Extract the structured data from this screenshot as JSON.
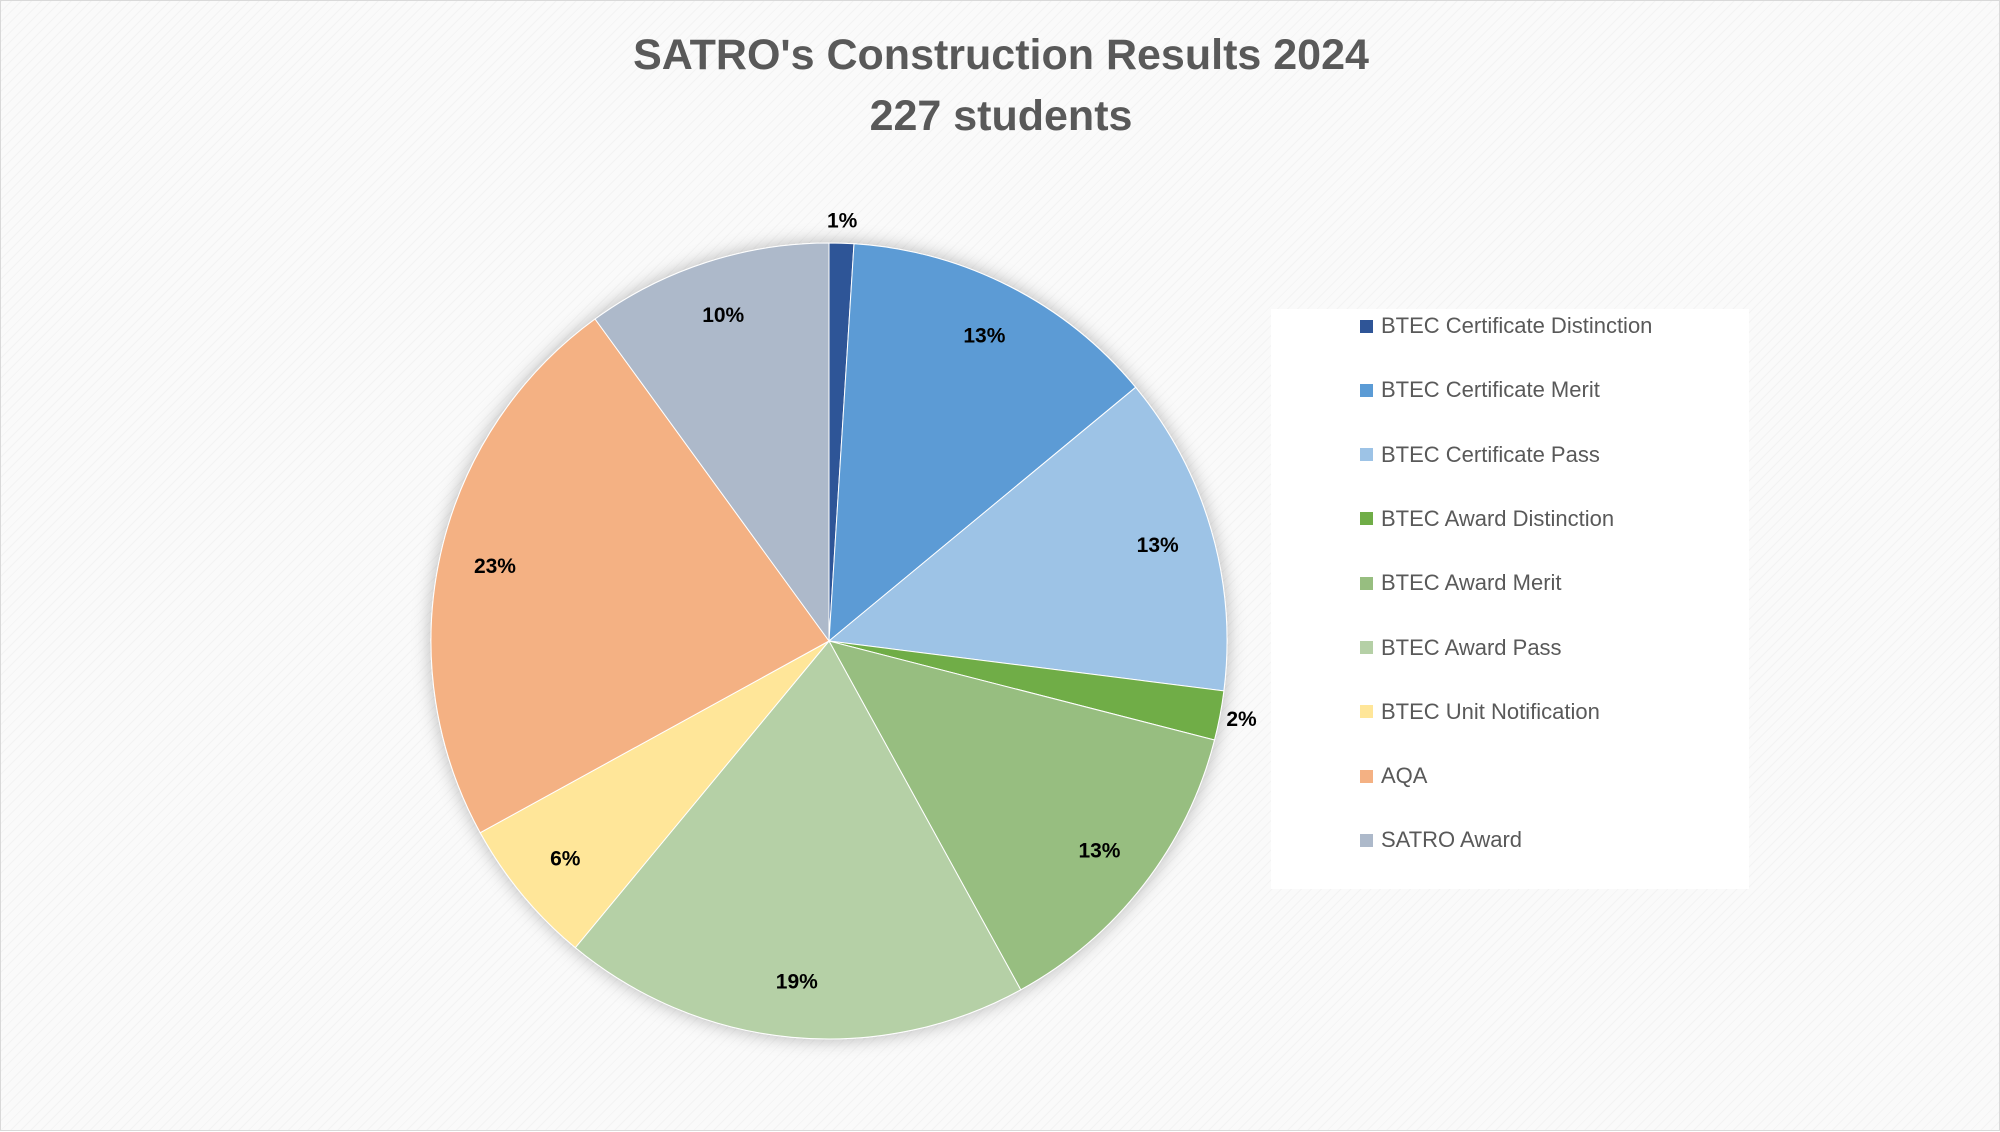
{
  "chart_data": {
    "type": "pie",
    "title": "SATRO's Construction Results 2024",
    "subtitle": "227  students",
    "legend_position": "right",
    "slices": [
      {
        "label": "BTEC Certificate Distinction",
        "value": 1,
        "value_label": "1%",
        "color": "#2f5597"
      },
      {
        "label": "BTEC Certificate Merit",
        "value": 13,
        "value_label": "13%",
        "color": "#5b9bd5"
      },
      {
        "label": "BTEC Certificate Pass",
        "value": 13,
        "value_label": "13%",
        "color": "#9dc3e6"
      },
      {
        "label": "BTEC Award Distinction",
        "value": 2,
        "value_label": "2%",
        "color": "#70ad47"
      },
      {
        "label": "BTEC Award Merit",
        "value": 13,
        "value_label": "13%",
        "color": "#97be80"
      },
      {
        "label": "BTEC Award Pass",
        "value": 19,
        "value_label": "19%",
        "color": "#b5d0a6"
      },
      {
        "label": "BTEC Unit Notification",
        "value": 6,
        "value_label": "6%",
        "color": "#ffe699"
      },
      {
        "label": "AQA",
        "value": 23,
        "value_label": "23%",
        "color": "#f4b183"
      },
      {
        "label": "SATRO Award",
        "value": 10,
        "value_label": "10%",
        "color": "#adb9ca"
      }
    ]
  }
}
